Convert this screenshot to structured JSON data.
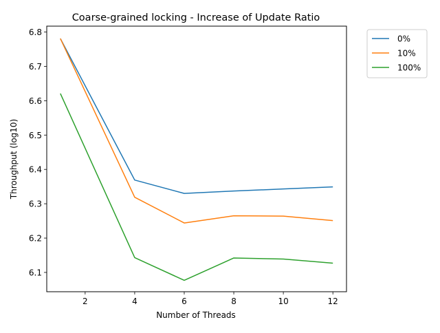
{
  "chart_data": {
    "type": "line",
    "title": "Coarse-grained locking - Increase of Update Ratio",
    "xlabel": "Number of Threads",
    "ylabel": "Throughput (log10)",
    "x": [
      1,
      4,
      6,
      8,
      10,
      12
    ],
    "xlim": [
      0.45,
      12.55
    ],
    "ylim": [
      6.0438,
      6.8172
    ],
    "xticks": [
      2,
      4,
      6,
      8,
      10,
      12
    ],
    "yticks": [
      6.1,
      6.2,
      6.3,
      6.4,
      6.5,
      6.6,
      6.7,
      6.8
    ],
    "ytick_labels": [
      "6.1",
      "6.2",
      "6.3",
      "6.4",
      "6.5",
      "6.6",
      "6.7",
      "6.8"
    ],
    "legend_position": "outside-top-right",
    "grid": false,
    "series": [
      {
        "name": "0%",
        "color": "#1f77b4",
        "values": [
          6.781,
          6.369,
          6.33,
          6.337,
          6.343,
          6.349
        ]
      },
      {
        "name": "10%",
        "color": "#ff7f0e",
        "values": [
          6.781,
          6.319,
          6.244,
          6.265,
          6.264,
          6.251
        ]
      },
      {
        "name": "100%",
        "color": "#2ca02c",
        "values": [
          6.621,
          6.143,
          6.077,
          6.142,
          6.139,
          6.127
        ]
      }
    ]
  }
}
